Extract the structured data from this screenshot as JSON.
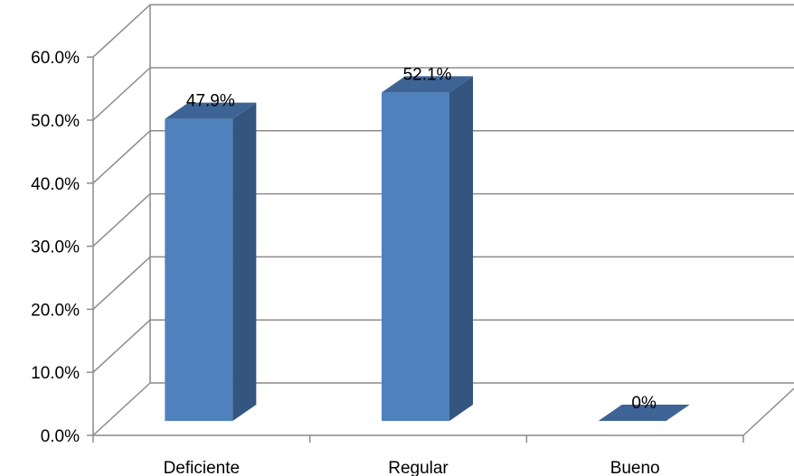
{
  "chart_data": {
    "type": "bar",
    "categories": [
      "Deficiente",
      "Regular",
      "Bueno"
    ],
    "values": [
      47.9,
      52.1,
      0
    ],
    "data_labels": [
      "47.9%",
      "52.1%",
      "0%"
    ],
    "ylim": [
      0,
      60
    ],
    "yticks": [
      "0.0%",
      "10.0%",
      "20.0%",
      "30.0%",
      "40.0%",
      "50.0%",
      "60.0%"
    ],
    "title": "",
    "xlabel": "",
    "ylabel": "",
    "grid": true,
    "style": "3d-column",
    "colors": {
      "bar_front": "#4F81BD",
      "bar_side": "#34557F",
      "bar_top": "#3E6496",
      "grid": "#8C8C8C"
    }
  }
}
